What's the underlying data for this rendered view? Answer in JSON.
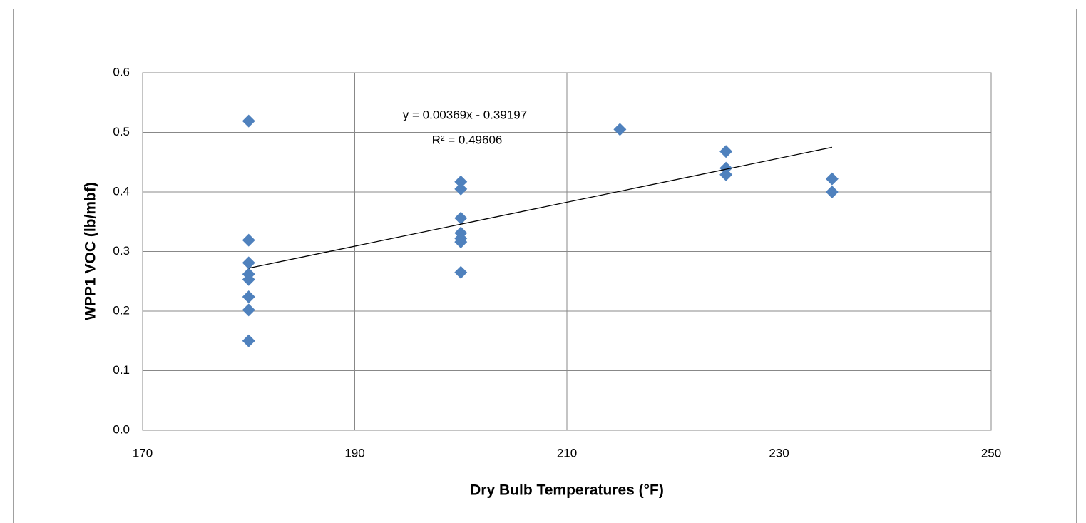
{
  "chart_data": {
    "type": "scatter",
    "x_label": "Dry Bulb Temperatures (°F)",
    "y_label": "WPP1 VOC (lb/mbf)",
    "x": [
      180,
      180,
      180,
      180,
      180,
      180,
      180,
      180,
      200,
      200,
      200,
      200,
      200,
      200,
      200,
      215,
      225,
      225,
      225,
      235,
      235
    ],
    "values": [
      0.15,
      0.202,
      0.224,
      0.253,
      0.262,
      0.281,
      0.319,
      0.519,
      0.265,
      0.316,
      0.322,
      0.331,
      0.356,
      0.405,
      0.417,
      0.505,
      0.468,
      0.44,
      0.429,
      0.422,
      0.4
    ],
    "color": "#4f81bd",
    "xlim": [
      170,
      250
    ],
    "xticks": [
      170,
      190,
      210,
      230,
      250
    ],
    "ylim": [
      0,
      0.6
    ],
    "yticks": [
      {
        "value": 0,
        "label": "0.0"
      },
      0.1,
      0.2,
      0.3,
      0.4,
      0.5,
      0.6
    ],
    "grid": true,
    "trendline": {
      "equation": "y = 0.00369x - 0.39197",
      "r_squared": "R² = 0.49606",
      "x": [
        180,
        235
      ],
      "y": [
        0.272,
        0.475
      ]
    }
  }
}
